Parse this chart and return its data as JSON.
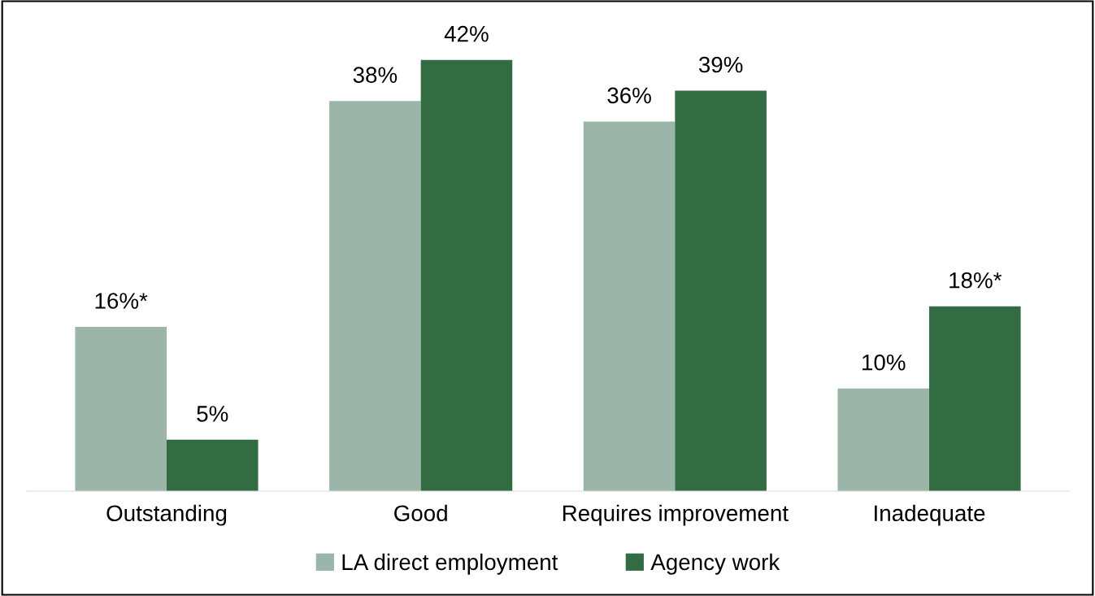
{
  "chart_data": {
    "type": "bar",
    "categories": [
      "Outstanding",
      "Good",
      "Requires improvement",
      "Inadequate"
    ],
    "series": [
      {
        "name": "LA direct employment",
        "color": "#9bb5a8",
        "values": [
          16,
          38,
          36,
          10
        ],
        "value_labels": [
          "16%*",
          "38%",
          "36%",
          "10%"
        ]
      },
      {
        "name": "Agency work",
        "color": "#336b42",
        "values": [
          5,
          42,
          39,
          18
        ],
        "value_labels": [
          "5%",
          "42%",
          "39%",
          "18%*"
        ]
      }
    ],
    "legend": "bottom"
  }
}
